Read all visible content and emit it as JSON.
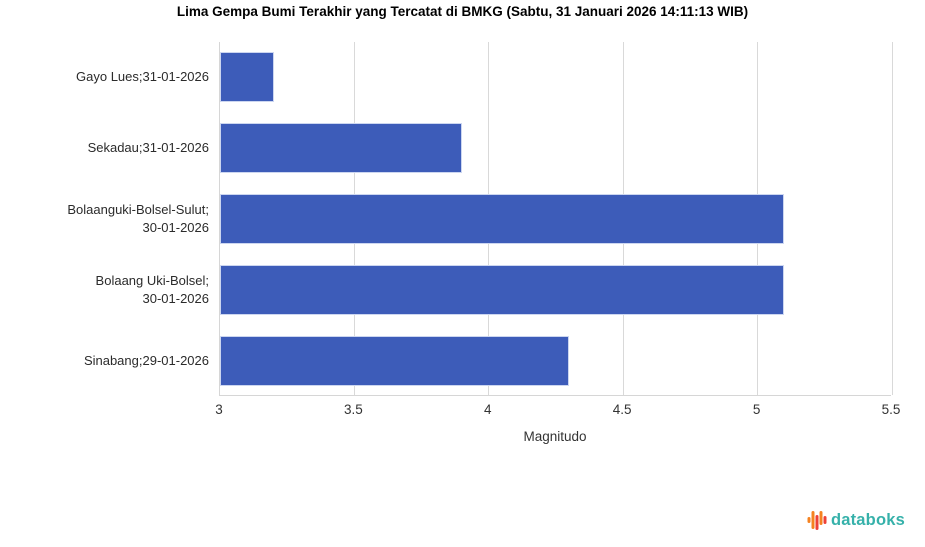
{
  "title": "Lima Gempa Bumi Terakhir yang Tercatat di BMKG (Sabtu, 31 Januari 2026 14:11:13 WIB)",
  "chart_data": {
    "type": "bar",
    "orientation": "horizontal",
    "title": "Lima Gempa Bumi Terakhir yang Tercatat di BMKG (Sabtu, 31 Januari 2026 14:11:13 WIB)",
    "categories": [
      "Gayo Lues;31-01-2026",
      "Sekadau;31-01-2026",
      "Bolaanguki-Bolsel-Sulut;\n30-01-2026",
      "Bolaang Uki-Bolsel;\n30-01-2026",
      "Sinabang;29-01-2026"
    ],
    "values": [
      3.2,
      3.9,
      5.1,
      5.1,
      4.3
    ],
    "xlabel": "Magnitudo",
    "ylabel": "",
    "xlim": [
      3,
      5.5
    ],
    "xticks": [
      "3",
      "3.5",
      "4",
      "4.5",
      "5",
      "5.5"
    ],
    "grid": "vertical-only",
    "legend": "none",
    "bar_color": "#3D5CB9",
    "bar_border_color": "#CCD6F0",
    "gridline_color": "#D9D9D9"
  },
  "branding": {
    "logo_text": "databoks",
    "logo_text_color": "#36B1AA",
    "icon_color_orange": "#F58220",
    "icon_color_red": "#EE4137"
  }
}
